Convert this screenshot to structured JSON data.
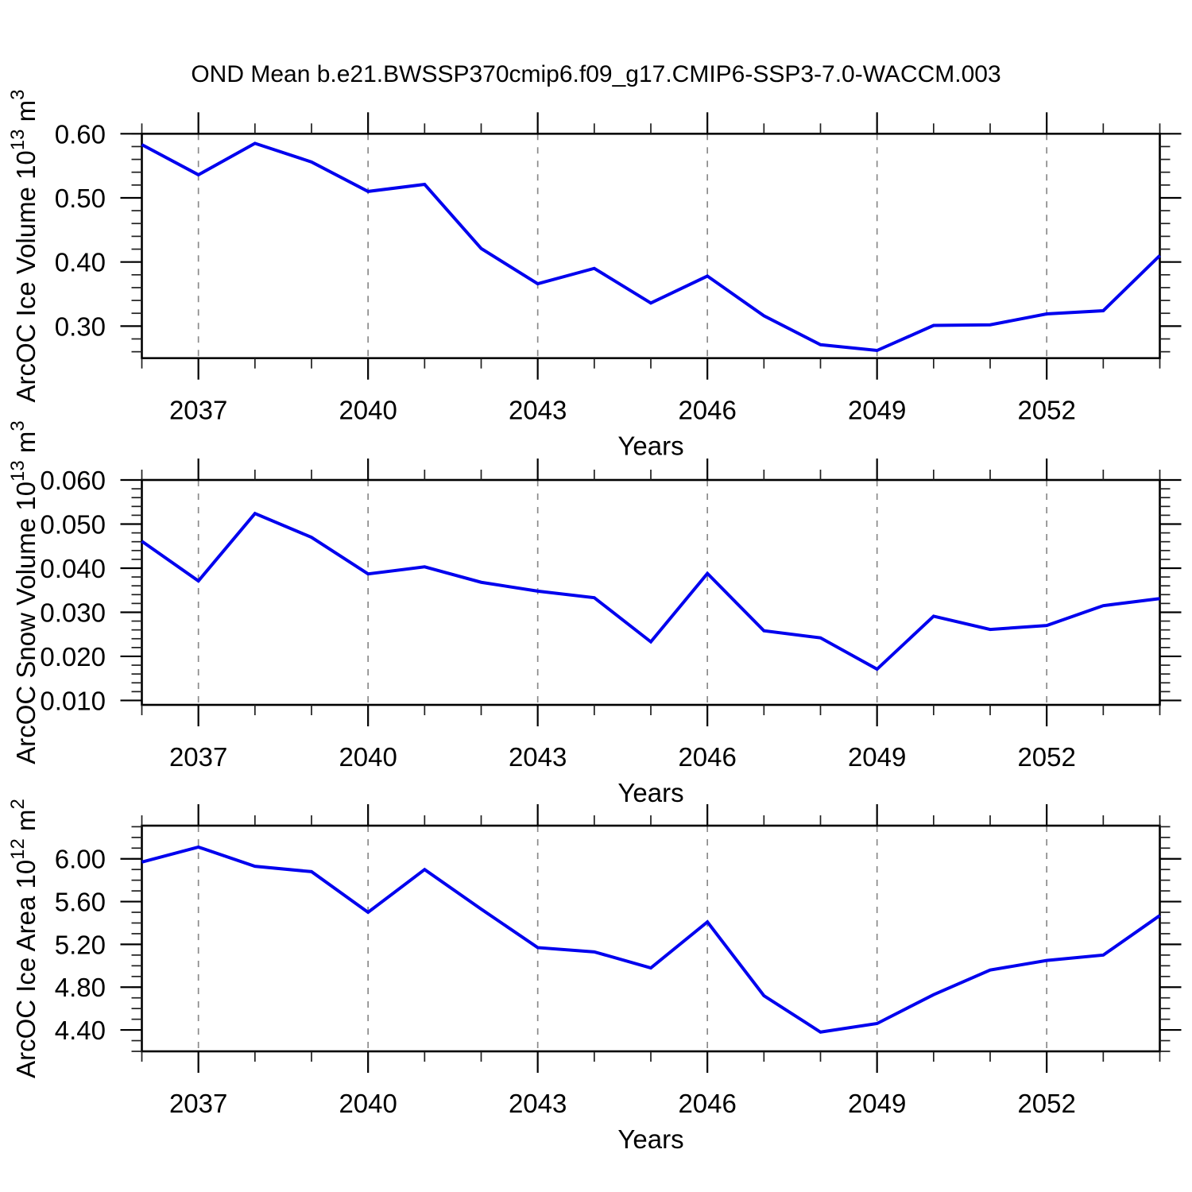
{
  "title": "OND Mean b.e21.BWSSP370cmip6.f09_g17.CMIP6-SSP3-7.0-WACCM.003",
  "colors": {
    "line": "#0000ee",
    "frame": "#000000",
    "grid": "#8a8a8a",
    "text": "#000000",
    "background": "#ffffff"
  },
  "x_axis": {
    "label": "Years",
    "range": [
      2036,
      2054
    ],
    "minor_step": 1,
    "major_ticks": [
      2037,
      2040,
      2043,
      2046,
      2049,
      2052
    ],
    "tick_labels": [
      "2037",
      "2040",
      "2043",
      "2046",
      "2049",
      "2052"
    ],
    "gridlines": "dashed-vertical-at-major-ticks"
  },
  "chart_data": [
    {
      "type": "line",
      "name": "ice-volume",
      "xlabel": "Years",
      "ylabel": "ArcOC Ice Volume 10^13 m^3",
      "ylabel_parts": [
        [
          "ArcOC Ice Volume 10",
          false
        ],
        [
          "13",
          true
        ],
        [
          " m",
          false
        ],
        [
          "3",
          true
        ]
      ],
      "ylim": [
        0.25,
        0.6
      ],
      "y_major_ticks": [
        0.3,
        0.4,
        0.5,
        0.6
      ],
      "y_tick_labels": [
        "0.30",
        "0.40",
        "0.50",
        "0.60"
      ],
      "y_minor_step": 0.02,
      "x": [
        2036,
        2037,
        2038,
        2039,
        2040,
        2041,
        2042,
        2043,
        2044,
        2045,
        2046,
        2047,
        2048,
        2049,
        2050,
        2051,
        2052,
        2053,
        2054
      ],
      "values": [
        0.583,
        0.536,
        0.585,
        0.556,
        0.51,
        0.521,
        0.421,
        0.366,
        0.39,
        0.336,
        0.378,
        0.316,
        0.271,
        0.262,
        0.301,
        0.302,
        0.319,
        0.324,
        0.41
      ]
    },
    {
      "type": "line",
      "name": "snow-volume",
      "xlabel": "Years",
      "ylabel": "ArcOC Snow Volume 10^13 m^3",
      "ylabel_parts": [
        [
          "ArcOC Snow Volume 10",
          false
        ],
        [
          "13",
          true
        ],
        [
          " m",
          false
        ],
        [
          "3",
          true
        ]
      ],
      "ylim": [
        0.009,
        0.06
      ],
      "y_major_ticks": [
        0.01,
        0.02,
        0.03,
        0.04,
        0.05,
        0.06
      ],
      "y_tick_labels": [
        "0.010",
        "0.020",
        "0.030",
        "0.040",
        "0.050",
        "0.060"
      ],
      "y_minor_step": 0.002,
      "x": [
        2036,
        2037,
        2038,
        2039,
        2040,
        2041,
        2042,
        2043,
        2044,
        2045,
        2046,
        2047,
        2048,
        2049,
        2050,
        2051,
        2052,
        2053,
        2054
      ],
      "values": [
        0.0461,
        0.0371,
        0.0524,
        0.047,
        0.0387,
        0.0403,
        0.0368,
        0.0348,
        0.0333,
        0.0233,
        0.0388,
        0.0258,
        0.0242,
        0.0171,
        0.0291,
        0.0261,
        0.027,
        0.0315,
        0.0331
      ]
    },
    {
      "type": "line",
      "name": "ice-area",
      "xlabel": "Years",
      "ylabel": "ArcOC Ice Area 10^12 m^2",
      "ylabel_parts": [
        [
          "ArcOC Ice Area 10",
          false
        ],
        [
          "12",
          true
        ],
        [
          " m",
          false
        ],
        [
          "2",
          true
        ]
      ],
      "ylim": [
        4.2,
        6.31
      ],
      "y_major_ticks": [
        4.4,
        4.8,
        5.2,
        5.6,
        6.0
      ],
      "y_tick_labels": [
        "4.40",
        "4.80",
        "5.20",
        "5.60",
        "6.00"
      ],
      "y_minor_step": 0.1,
      "x": [
        2036,
        2037,
        2038,
        2039,
        2040,
        2041,
        2042,
        2043,
        2044,
        2045,
        2046,
        2047,
        2048,
        2049,
        2050,
        2051,
        2052,
        2053,
        2054
      ],
      "values": [
        5.97,
        6.11,
        5.93,
        5.88,
        5.5,
        5.9,
        5.53,
        5.17,
        5.13,
        4.98,
        5.41,
        4.72,
        4.38,
        4.46,
        4.73,
        4.96,
        5.05,
        5.1,
        5.47
      ]
    }
  ]
}
